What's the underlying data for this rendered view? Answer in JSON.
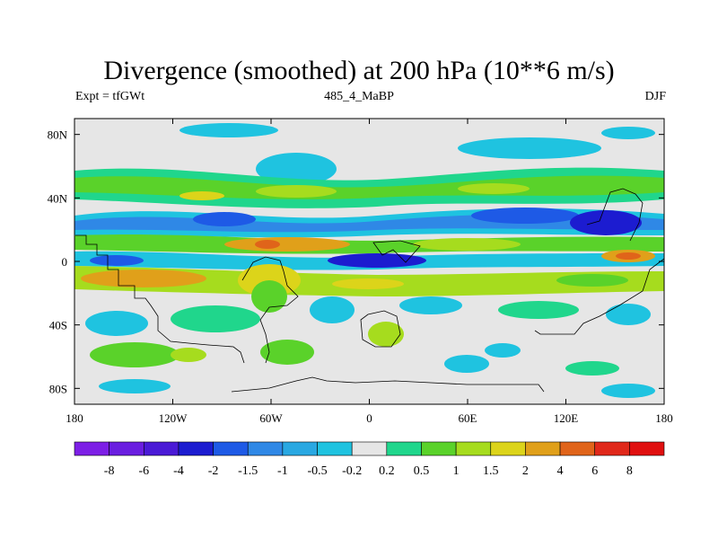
{
  "title": "Divergence (smoothed) at 200 hPa (10**6 m/s)",
  "left_label": "Expt = tfGWt",
  "center_label": "485_4_MaBP",
  "right_label": "DJF",
  "chart_data": {
    "type": "heatmap",
    "variable": "Divergence (smoothed)",
    "level": "200 hPa",
    "units": "10**6 m/s",
    "x_axis": {
      "range": [
        -180,
        180
      ],
      "ticks": [
        {
          "value": -180,
          "label": "180"
        },
        {
          "value": -120,
          "label": "120W"
        },
        {
          "value": -60,
          "label": "60W"
        },
        {
          "value": 0,
          "label": "0"
        },
        {
          "value": 60,
          "label": "60E"
        },
        {
          "value": 120,
          "label": "120E"
        },
        {
          "value": 180,
          "label": "180"
        }
      ]
    },
    "y_axis": {
      "range": [
        -90,
        90
      ],
      "ticks": [
        {
          "value": 80,
          "label": "80N"
        },
        {
          "value": 40,
          "label": "40N"
        },
        {
          "value": 0,
          "label": "0"
        },
        {
          "value": -40,
          "label": "40S"
        },
        {
          "value": -80,
          "label": "80S"
        }
      ]
    },
    "colorbar": {
      "boundaries": [
        "-8",
        "-6",
        "-4",
        "-2",
        "-1.5",
        "-1",
        "-0.5",
        "-0.2",
        "0.2",
        "0.5",
        "1",
        "1.5",
        "2",
        "4",
        "6",
        "8"
      ],
      "colors": [
        "#7d1fe6",
        "#6a1ee0",
        "#4a1ad6",
        "#1c1cd0",
        "#1e5ae6",
        "#2f88e6",
        "#29a8e2",
        "#1fc3e0",
        "#e6e6e6",
        "#20d68c",
        "#5ad22a",
        "#a6dc1e",
        "#dcd41a",
        "#e0a01a",
        "#e0641a",
        "#e0281a",
        "#e01010"
      ]
    },
    "bands": [
      {
        "lat": 70,
        "value": -0.5
      },
      {
        "lat": 50,
        "value": 0.5
      },
      {
        "lat": 40,
        "value": 1
      },
      {
        "lat": 27,
        "value": -1
      },
      {
        "lat": 15,
        "value": 1.5
      },
      {
        "lat": 4,
        "value": -2
      },
      {
        "lat": -8,
        "value": 2
      },
      {
        "lat": -22,
        "value": 0.5
      },
      {
        "lat": -35,
        "value": -0.5
      },
      {
        "lat": -50,
        "value": 0.5
      },
      {
        "lat": -65,
        "value": -0.5
      }
    ]
  }
}
